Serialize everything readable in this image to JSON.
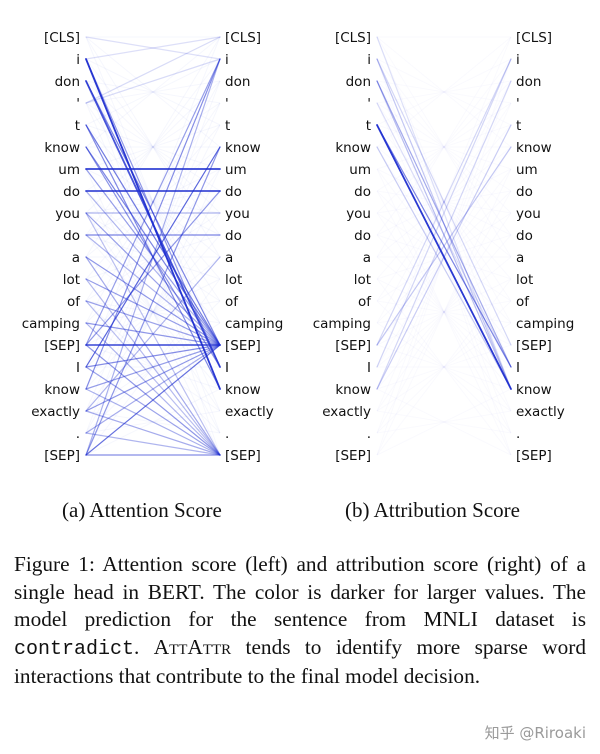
{
  "tokens": [
    "[CLS]",
    "i",
    "don",
    "'",
    "t",
    "know",
    "um",
    "do",
    "you",
    "do",
    "a",
    "lot",
    "of",
    "camping",
    "[SEP]",
    "I",
    "know",
    "exactly",
    ".",
    "[SEP]"
  ],
  "line_color": "#1f2fd0",
  "panels": [
    {
      "id": "attention",
      "caption": "(a) Attention Score",
      "edges": [
        {
          "from": 1,
          "to": 16,
          "strength": 0.95
        },
        {
          "from": 1,
          "to": 15,
          "strength": 0.45
        },
        {
          "from": 2,
          "to": 15,
          "strength": 0.8
        },
        {
          "from": 2,
          "to": 14,
          "strength": 0.55
        },
        {
          "from": 4,
          "to": 14,
          "strength": 0.6
        },
        {
          "from": 4,
          "to": 16,
          "strength": 0.5
        },
        {
          "from": 5,
          "to": 14,
          "strength": 0.55
        },
        {
          "from": 5,
          "to": 15,
          "strength": 0.45
        },
        {
          "from": 6,
          "to": 6,
          "strength": 0.9
        },
        {
          "from": 6,
          "to": 14,
          "strength": 0.4
        },
        {
          "from": 7,
          "to": 7,
          "strength": 0.85
        },
        {
          "from": 8,
          "to": 14,
          "strength": 0.4
        },
        {
          "from": 8,
          "to": 8,
          "strength": 0.3
        },
        {
          "from": 9,
          "to": 9,
          "strength": 0.55
        },
        {
          "from": 10,
          "to": 14,
          "strength": 0.45
        },
        {
          "from": 10,
          "to": 19,
          "strength": 0.35
        },
        {
          "from": 11,
          "to": 14,
          "strength": 0.4
        },
        {
          "from": 12,
          "to": 14,
          "strength": 0.4
        },
        {
          "from": 13,
          "to": 14,
          "strength": 0.45
        },
        {
          "from": 13,
          "to": 19,
          "strength": 0.3
        },
        {
          "from": 14,
          "to": 14,
          "strength": 0.75
        },
        {
          "from": 14,
          "to": 19,
          "strength": 0.45
        },
        {
          "from": 14,
          "to": 7,
          "strength": 0.45
        },
        {
          "from": 14,
          "to": 1,
          "strength": 0.4
        },
        {
          "from": 15,
          "to": 5,
          "strength": 0.7
        },
        {
          "from": 15,
          "to": 14,
          "strength": 0.5
        },
        {
          "from": 15,
          "to": 19,
          "strength": 0.4
        },
        {
          "from": 16,
          "to": 1,
          "strength": 0.5
        },
        {
          "from": 16,
          "to": 14,
          "strength": 0.4
        },
        {
          "from": 17,
          "to": 14,
          "strength": 0.45
        },
        {
          "from": 17,
          "to": 19,
          "strength": 0.35
        },
        {
          "from": 17,
          "to": 10,
          "strength": 0.3
        },
        {
          "from": 18,
          "to": 14,
          "strength": 0.35
        },
        {
          "from": 18,
          "to": 19,
          "strength": 0.3
        },
        {
          "from": 19,
          "to": 14,
          "strength": 0.65
        },
        {
          "from": 19,
          "to": 19,
          "strength": 0.5
        },
        {
          "from": 19,
          "to": 5,
          "strength": 0.45
        },
        {
          "from": 19,
          "to": 1,
          "strength": 0.3
        },
        {
          "from": 3,
          "to": 0,
          "strength": 0.1
        },
        {
          "from": 3,
          "to": 1,
          "strength": 0.1
        },
        {
          "from": 0,
          "to": 1,
          "strength": 0.08
        },
        {
          "from": 1,
          "to": 0,
          "strength": 0.08
        },
        {
          "from": 9,
          "to": 14,
          "strength": 0.3
        },
        {
          "from": 11,
          "to": 19,
          "strength": 0.25
        },
        {
          "from": 12,
          "to": 19,
          "strength": 0.25
        },
        {
          "from": 16,
          "to": 19,
          "strength": 0.3
        },
        {
          "from": 8,
          "to": 19,
          "strength": 0.25
        },
        {
          "from": 7,
          "to": 14,
          "strength": 0.3
        }
      ]
    },
    {
      "id": "attribution",
      "caption": "(b) Attribution Score",
      "edges": [
        {
          "from": 4,
          "to": 16,
          "strength": 0.95
        },
        {
          "from": 4,
          "to": 15,
          "strength": 0.55
        },
        {
          "from": 2,
          "to": 15,
          "strength": 0.35
        },
        {
          "from": 2,
          "to": 16,
          "strength": 0.25
        },
        {
          "from": 1,
          "to": 16,
          "strength": 0.2
        },
        {
          "from": 5,
          "to": 16,
          "strength": 0.18
        },
        {
          "from": 14,
          "to": 5,
          "strength": 0.2
        },
        {
          "from": 16,
          "to": 4,
          "strength": 0.15
        },
        {
          "from": 15,
          "to": 1,
          "strength": 0.12
        },
        {
          "from": 16,
          "to": 2,
          "strength": 0.12
        },
        {
          "from": 14,
          "to": 1,
          "strength": 0.1
        },
        {
          "from": 1,
          "to": 14,
          "strength": 0.1
        },
        {
          "from": 3,
          "to": 15,
          "strength": 0.08
        },
        {
          "from": 0,
          "to": 16,
          "strength": 0.07
        }
      ]
    }
  ],
  "figure_caption": {
    "part1": "Figure 1:  Attention score (left) and attribution score (right) of a single head in BERT. The color is darker for larger values.  The model prediction for the sentence from MNLI dataset is ",
    "code": "contradict",
    "part2": ". ",
    "method": "AttAttr",
    "part3": " tends to identify more sparse word interactions that contribute to the final model decision."
  },
  "watermark": "知乎 @Riroaki"
}
